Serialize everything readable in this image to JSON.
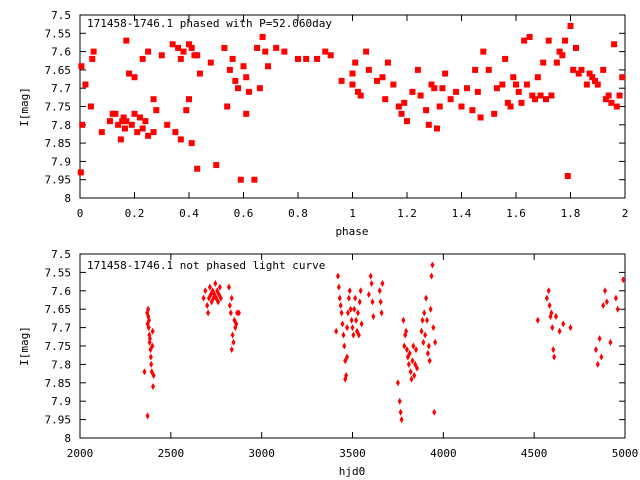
{
  "chart_data": [
    {
      "type": "scatter",
      "title": "171458-1746.1 phased with P=52.060day",
      "xlabel": "phase",
      "ylabel": "I[mag]",
      "xlim": [
        0,
        2
      ],
      "ylim": [
        8,
        7.5
      ],
      "y_inverted": true,
      "grid": false,
      "marker": "filled-square",
      "marker_color": "#ff0000",
      "xticks": [
        0,
        0.2,
        0.4,
        0.6,
        0.8,
        1,
        1.2,
        1.4,
        1.6,
        1.8,
        2
      ],
      "xtick_labels": [
        "0",
        "0.2",
        "0.4",
        "0.6",
        "0.8",
        "1",
        "1.2",
        "1.4",
        "1.6",
        "1.8",
        "2"
      ],
      "yticks": [
        7.5,
        7.55,
        7.6,
        7.65,
        7.7,
        7.75,
        7.8,
        7.85,
        7.9,
        7.95,
        8
      ],
      "ytick_labels": [
        "7.5",
        "7.55",
        "7.6",
        "7.65",
        "7.7",
        "7.75",
        "7.8",
        "7.85",
        "7.9",
        "7.95",
        "8"
      ],
      "points": [
        [
          0.005,
          7.64
        ],
        [
          0.008,
          7.8
        ],
        [
          0.003,
          7.93
        ],
        [
          0.02,
          7.69
        ],
        [
          0.04,
          7.75
        ],
        [
          0.045,
          7.62
        ],
        [
          0.05,
          7.6
        ],
        [
          0.08,
          7.82
        ],
        [
          0.11,
          7.79
        ],
        [
          0.12,
          7.77
        ],
        [
          0.13,
          7.77
        ],
        [
          0.14,
          7.8
        ],
        [
          0.15,
          7.84
        ],
        [
          0.155,
          7.79
        ],
        [
          0.16,
          7.78
        ],
        [
          0.165,
          7.81
        ],
        [
          0.17,
          7.79
        ],
        [
          0.18,
          7.66
        ],
        [
          0.19,
          7.8
        ],
        [
          0.2,
          7.77
        ],
        [
          0.21,
          7.82
        ],
        [
          0.22,
          7.78
        ],
        [
          0.23,
          7.81
        ],
        [
          0.24,
          7.79
        ],
        [
          0.25,
          7.83
        ],
        [
          0.17,
          7.57
        ],
        [
          0.2,
          7.67
        ],
        [
          0.23,
          7.62
        ],
        [
          0.25,
          7.6
        ],
        [
          0.27,
          7.82
        ],
        [
          0.27,
          7.73
        ],
        [
          0.28,
          7.76
        ],
        [
          0.3,
          7.61
        ],
        [
          0.32,
          7.8
        ],
        [
          0.34,
          7.58
        ],
        [
          0.35,
          7.82
        ],
        [
          0.36,
          7.59
        ],
        [
          0.37,
          7.62
        ],
        [
          0.38,
          7.6
        ],
        [
          0.4,
          7.58
        ],
        [
          0.41,
          7.59
        ],
        [
          0.42,
          7.61
        ],
        [
          0.43,
          7.61
        ],
        [
          0.44,
          7.66
        ],
        [
          0.37,
          7.84
        ],
        [
          0.39,
          7.76
        ],
        [
          0.4,
          7.73
        ],
        [
          0.41,
          7.85
        ],
        [
          0.43,
          7.92
        ],
        [
          0.48,
          7.63
        ],
        [
          0.5,
          7.91
        ],
        [
          0.53,
          7.59
        ],
        [
          0.54,
          7.75
        ],
        [
          0.55,
          7.65
        ],
        [
          0.56,
          7.62
        ],
        [
          0.57,
          7.68
        ],
        [
          0.58,
          7.7
        ],
        [
          0.59,
          7.95
        ],
        [
          0.6,
          7.64
        ],
        [
          0.61,
          7.67
        ],
        [
          0.62,
          7.71
        ],
        [
          0.61,
          7.77
        ],
        [
          0.64,
          7.95
        ],
        [
          0.65,
          7.59
        ],
        [
          0.66,
          7.7
        ],
        [
          0.67,
          7.56
        ],
        [
          0.68,
          7.6
        ],
        [
          0.69,
          7.64
        ],
        [
          0.72,
          7.59
        ],
        [
          0.75,
          7.6
        ],
        [
          0.8,
          7.62
        ],
        [
          0.83,
          7.62
        ],
        [
          0.87,
          7.62
        ],
        [
          0.9,
          7.6
        ],
        [
          0.92,
          7.61
        ],
        [
          0.96,
          7.68
        ],
        [
          1.0,
          7.66
        ],
        [
          1.0,
          7.69
        ],
        [
          1.01,
          7.63
        ],
        [
          1.02,
          7.71
        ],
        [
          1.03,
          7.72
        ],
        [
          1.05,
          7.6
        ],
        [
          1.06,
          7.65
        ],
        [
          1.09,
          7.68
        ],
        [
          1.11,
          7.67
        ],
        [
          1.12,
          7.73
        ],
        [
          1.13,
          7.63
        ],
        [
          1.15,
          7.69
        ],
        [
          1.17,
          7.75
        ],
        [
          1.18,
          7.77
        ],
        [
          1.19,
          7.74
        ],
        [
          1.2,
          7.79
        ],
        [
          1.22,
          7.71
        ],
        [
          1.24,
          7.65
        ],
        [
          1.25,
          7.72
        ],
        [
          1.27,
          7.76
        ],
        [
          1.28,
          7.8
        ],
        [
          1.29,
          7.69
        ],
        [
          1.3,
          7.7
        ],
        [
          1.31,
          7.81
        ],
        [
          1.32,
          7.75
        ],
        [
          1.33,
          7.7
        ],
        [
          1.34,
          7.66
        ],
        [
          1.36,
          7.73
        ],
        [
          1.38,
          7.71
        ],
        [
          1.4,
          7.75
        ],
        [
          1.42,
          7.7
        ],
        [
          1.44,
          7.76
        ],
        [
          1.45,
          7.65
        ],
        [
          1.46,
          7.71
        ],
        [
          1.47,
          7.78
        ],
        [
          1.48,
          7.6
        ],
        [
          1.5,
          7.65
        ],
        [
          1.52,
          7.77
        ],
        [
          1.53,
          7.7
        ],
        [
          1.55,
          7.69
        ],
        [
          1.56,
          7.62
        ],
        [
          1.57,
          7.74
        ],
        [
          1.58,
          7.75
        ],
        [
          1.59,
          7.67
        ],
        [
          1.6,
          7.69
        ],
        [
          1.61,
          7.71
        ],
        [
          1.62,
          7.74
        ],
        [
          1.63,
          7.57
        ],
        [
          1.64,
          7.69
        ],
        [
          1.65,
          7.56
        ],
        [
          1.66,
          7.72
        ],
        [
          1.67,
          7.73
        ],
        [
          1.68,
          7.67
        ],
        [
          1.69,
          7.72
        ],
        [
          1.7,
          7.63
        ],
        [
          1.71,
          7.73
        ],
        [
          1.72,
          7.57
        ],
        [
          1.73,
          7.72
        ],
        [
          1.75,
          7.63
        ],
        [
          1.76,
          7.6
        ],
        [
          1.77,
          7.61
        ],
        [
          1.78,
          7.57
        ],
        [
          1.79,
          7.94
        ],
        [
          1.8,
          7.53
        ],
        [
          1.81,
          7.65
        ],
        [
          1.82,
          7.59
        ],
        [
          1.83,
          7.66
        ],
        [
          1.84,
          7.65
        ],
        [
          1.86,
          7.69
        ],
        [
          1.87,
          7.66
        ],
        [
          1.88,
          7.67
        ],
        [
          1.89,
          7.68
        ],
        [
          1.9,
          7.69
        ],
        [
          1.92,
          7.65
        ],
        [
          1.93,
          7.73
        ],
        [
          1.94,
          7.72
        ],
        [
          1.95,
          7.74
        ],
        [
          1.96,
          7.58
        ],
        [
          1.97,
          7.75
        ],
        [
          1.98,
          7.72
        ],
        [
          1.99,
          7.67
        ]
      ]
    },
    {
      "type": "scatter",
      "title": "171458-1746.1 not phased light curve",
      "xlabel": "hjd0",
      "ylabel": "I[mag]",
      "xlim": [
        2000,
        5000
      ],
      "ylim": [
        8,
        7.5
      ],
      "y_inverted": true,
      "grid": false,
      "marker": "diamond",
      "marker_color": "#ff0000",
      "xticks": [
        2000,
        2500,
        3000,
        3500,
        4000,
        4500,
        5000
      ],
      "xtick_labels": [
        "2000",
        "2500",
        "3000",
        "3500",
        "4000",
        "4500",
        "5000"
      ],
      "yticks": [
        7.5,
        7.55,
        7.6,
        7.65,
        7.7,
        7.75,
        7.8,
        7.85,
        7.9,
        7.95,
        8
      ],
      "ytick_labels": [
        "7.5",
        "7.55",
        "7.6",
        "7.65",
        "7.7",
        "7.75",
        "7.8",
        "7.85",
        "7.9",
        "7.95",
        "8"
      ],
      "points": [
        [
          2355,
          7.82
        ],
        [
          2370,
          7.66
        ],
        [
          2372,
          7.69
        ],
        [
          2375,
          7.65
        ],
        [
          2378,
          7.7
        ],
        [
          2380,
          7.68
        ],
        [
          2382,
          7.72
        ],
        [
          2385,
          7.73
        ],
        [
          2388,
          7.76
        ],
        [
          2390,
          7.78
        ],
        [
          2392,
          7.8
        ],
        [
          2395,
          7.82
        ],
        [
          2398,
          7.75
        ],
        [
          2400,
          7.71
        ],
        [
          2402,
          7.86
        ],
        [
          2405,
          7.83
        ],
        [
          2372,
          7.94
        ],
        [
          2376,
          7.67
        ],
        [
          2383,
          7.74
        ],
        [
          2680,
          7.62
        ],
        [
          2690,
          7.6
        ],
        [
          2700,
          7.64
        ],
        [
          2705,
          7.66
        ],
        [
          2710,
          7.62
        ],
        [
          2715,
          7.59
        ],
        [
          2720,
          7.61
        ],
        [
          2725,
          7.63
        ],
        [
          2730,
          7.6
        ],
        [
          2735,
          7.62
        ],
        [
          2740,
          7.61
        ],
        [
          2745,
          7.58
        ],
        [
          2750,
          7.62
        ],
        [
          2755,
          7.6
        ],
        [
          2760,
          7.63
        ],
        [
          2765,
          7.61
        ],
        [
          2770,
          7.59
        ],
        [
          2775,
          7.62
        ],
        [
          2820,
          7.59
        ],
        [
          2825,
          7.64
        ],
        [
          2830,
          7.66
        ],
        [
          2835,
          7.62
        ],
        [
          2840,
          7.72
        ],
        [
          2845,
          7.74
        ],
        [
          2850,
          7.68
        ],
        [
          2855,
          7.7
        ],
        [
          2860,
          7.69
        ],
        [
          2865,
          7.66
        ],
        [
          2875,
          7.66
        ],
        [
          2835,
          7.76
        ],
        [
          3410,
          7.71
        ],
        [
          3420,
          7.56
        ],
        [
          3425,
          7.59
        ],
        [
          3430,
          7.62
        ],
        [
          3435,
          7.64
        ],
        [
          3440,
          7.66
        ],
        [
          3445,
          7.69
        ],
        [
          3450,
          7.72
        ],
        [
          3455,
          7.75
        ],
        [
          3460,
          7.79
        ],
        [
          3465,
          7.83
        ],
        [
          3470,
          7.7
        ],
        [
          3475,
          7.66
        ],
        [
          3480,
          7.62
        ],
        [
          3485,
          7.6
        ],
        [
          3490,
          7.65
        ],
        [
          3495,
          7.68
        ],
        [
          3500,
          7.7
        ],
        [
          3505,
          7.72
        ],
        [
          3510,
          7.65
        ],
        [
          3515,
          7.62
        ],
        [
          3520,
          7.68
        ],
        [
          3525,
          7.71
        ],
        [
          3530,
          7.66
        ],
        [
          3535,
          7.72
        ],
        [
          3540,
          7.63
        ],
        [
          3545,
          7.6
        ],
        [
          3550,
          7.69
        ],
        [
          3460,
          7.84
        ],
        [
          3470,
          7.78
        ],
        [
          3590,
          7.61
        ],
        [
          3600,
          7.56
        ],
        [
          3605,
          7.58
        ],
        [
          3610,
          7.63
        ],
        [
          3615,
          7.67
        ],
        [
          3650,
          7.6
        ],
        [
          3655,
          7.63
        ],
        [
          3660,
          7.66
        ],
        [
          3665,
          7.58
        ],
        [
          3750,
          7.85
        ],
        [
          3760,
          7.9
        ],
        [
          3765,
          7.93
        ],
        [
          3770,
          7.95
        ],
        [
          3780,
          7.68
        ],
        [
          3785,
          7.75
        ],
        [
          3790,
          7.72
        ],
        [
          3795,
          7.71
        ],
        [
          3800,
          7.76
        ],
        [
          3805,
          7.78
        ],
        [
          3810,
          7.8
        ],
        [
          3815,
          7.77
        ],
        [
          3820,
          7.82
        ],
        [
          3825,
          7.84
        ],
        [
          3830,
          7.79
        ],
        [
          3835,
          7.75
        ],
        [
          3840,
          7.83
        ],
        [
          3845,
          7.8
        ],
        [
          3850,
          7.76
        ],
        [
          3855,
          7.81
        ],
        [
          3880,
          7.71
        ],
        [
          3885,
          7.68
        ],
        [
          3890,
          7.74
        ],
        [
          3895,
          7.66
        ],
        [
          3900,
          7.72
        ],
        [
          3905,
          7.62
        ],
        [
          3910,
          7.68
        ],
        [
          3915,
          7.77
        ],
        [
          3920,
          7.75
        ],
        [
          3925,
          7.79
        ],
        [
          3930,
          7.65
        ],
        [
          3935,
          7.56
        ],
        [
          3940,
          7.53
        ],
        [
          3945,
          7.7
        ],
        [
          3950,
          7.93
        ],
        [
          3955,
          7.74
        ],
        [
          4520,
          7.68
        ],
        [
          4570,
          7.62
        ],
        [
          4580,
          7.6
        ],
        [
          4585,
          7.64
        ],
        [
          4590,
          7.67
        ],
        [
          4595,
          7.66
        ],
        [
          4600,
          7.7
        ],
        [
          4605,
          7.76
        ],
        [
          4610,
          7.78
        ],
        [
          4620,
          7.67
        ],
        [
          4640,
          7.71
        ],
        [
          4660,
          7.69
        ],
        [
          4700,
          7.7
        ],
        [
          4840,
          7.76
        ],
        [
          4850,
          7.8
        ],
        [
          4860,
          7.73
        ],
        [
          4870,
          7.78
        ],
        [
          4880,
          7.64
        ],
        [
          4890,
          7.6
        ],
        [
          4900,
          7.63
        ],
        [
          4920,
          7.74
        ],
        [
          4950,
          7.62
        ],
        [
          4960,
          7.65
        ],
        [
          4990,
          7.57
        ]
      ]
    }
  ]
}
